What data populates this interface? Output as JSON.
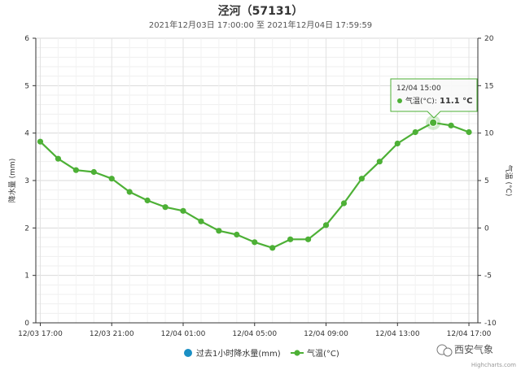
{
  "chart_data": {
    "type": "line",
    "title": "泾河（57131）",
    "subtitle": "2021年12月03日 17:00:00 至 2021年12月04日 17:59:59",
    "x_tick_labels": [
      "12/03 17:00",
      "12/03 21:00",
      "12/04 01:00",
      "12/04 05:00",
      "12/04 09:00",
      "12/04 13:00",
      "12/04 17:00"
    ],
    "y_left": {
      "label": "降水量 (mm)",
      "min": 0,
      "max": 6,
      "ticks": [
        "0",
        "1",
        "2",
        "3",
        "4",
        "5",
        "6"
      ]
    },
    "y_right": {
      "label": "气温 (°C)",
      "min": -10,
      "max": 20,
      "ticks": [
        "-10",
        "-5",
        "0",
        "5",
        "10",
        "15",
        "20"
      ]
    },
    "series": [
      {
        "name": "过去1小时降水量(mm)",
        "axis": "left",
        "color": "#1a8fc4",
        "hours": [],
        "values": []
      },
      {
        "name": "气温(°C)",
        "axis": "right",
        "color": "#4db036",
        "hours": [
          17,
          18,
          19,
          20,
          21,
          22,
          23,
          24,
          25,
          26,
          27,
          28,
          29,
          30,
          31,
          32,
          33,
          34,
          35,
          36,
          37,
          38,
          39,
          40,
          41
        ],
        "values": [
          9.1,
          7.3,
          6.1,
          5.9,
          5.2,
          3.8,
          2.9,
          2.2,
          1.8,
          0.7,
          -0.3,
          -0.7,
          -1.5,
          -2.1,
          -1.2,
          -1.2,
          0.3,
          2.6,
          5.2,
          7.0,
          8.9,
          10.1,
          11.1,
          10.8,
          10.1
        ]
      }
    ],
    "grid": true,
    "legend_position": "bottom",
    "tooltip": {
      "time": "12/04 15:00",
      "label": "气温(°C): ",
      "value": "11.1 °C",
      "hour": 39
    }
  },
  "credit": "Highcharts.com",
  "watermark": "西安气象",
  "watermark_icon": "wechat-icon"
}
